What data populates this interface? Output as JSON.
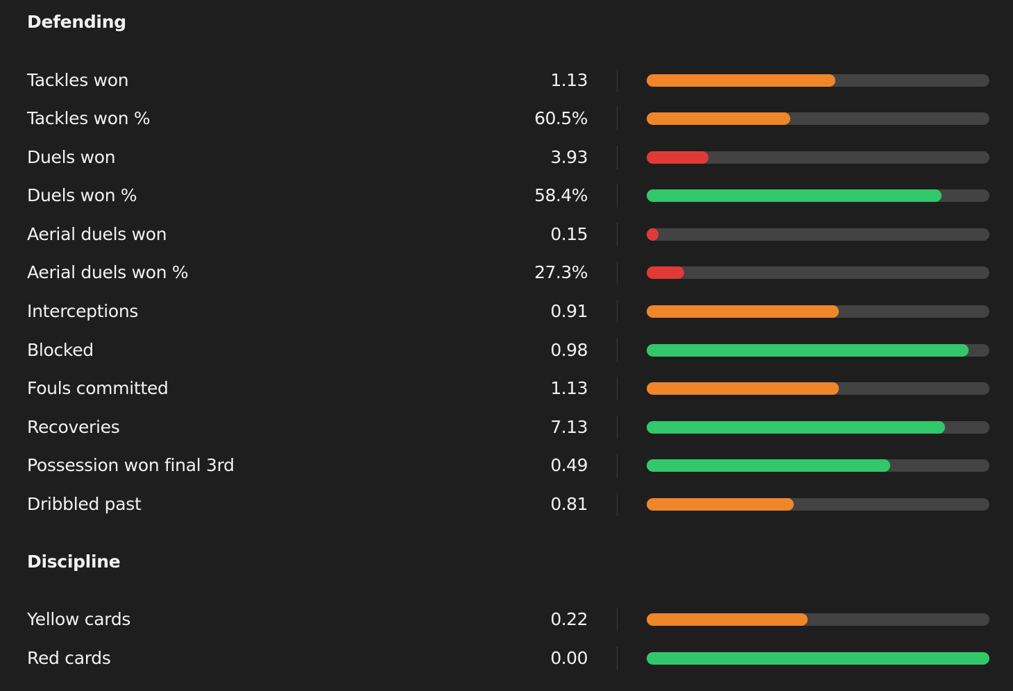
{
  "colors": {
    "background": "#1e1e1e",
    "text": "#f2f2f2",
    "track": "#434343",
    "divider": "#3b3b3b",
    "orange": "#f0862a",
    "red": "#e03a37",
    "green": "#33c76c"
  },
  "sections": [
    {
      "title": "Defending",
      "rows": [
        {
          "label": "Tackles won",
          "value": "1.13",
          "fill": 0.55,
          "color": "orange"
        },
        {
          "label": "Tackles won %",
          "value": "60.5%",
          "fill": 0.42,
          "color": "orange"
        },
        {
          "label": "Duels won",
          "value": "3.93",
          "fill": 0.18,
          "color": "red"
        },
        {
          "label": "Duels won %",
          "value": "58.4%",
          "fill": 0.86,
          "color": "green"
        },
        {
          "label": "Aerial duels won",
          "value": "0.15",
          "fill": 0.035,
          "color": "red"
        },
        {
          "label": "Aerial duels won %",
          "value": "27.3%",
          "fill": 0.11,
          "color": "red"
        },
        {
          "label": "Interceptions",
          "value": "0.91",
          "fill": 0.56,
          "color": "orange"
        },
        {
          "label": "Blocked",
          "value": "0.98",
          "fill": 0.94,
          "color": "green"
        },
        {
          "label": "Fouls committed",
          "value": "1.13",
          "fill": 0.56,
          "color": "orange"
        },
        {
          "label": "Recoveries",
          "value": "7.13",
          "fill": 0.87,
          "color": "green"
        },
        {
          "label": "Possession won final 3rd",
          "value": "0.49",
          "fill": 0.71,
          "color": "green"
        },
        {
          "label": "Dribbled past",
          "value": "0.81",
          "fill": 0.43,
          "color": "orange"
        }
      ]
    },
    {
      "title": "Discipline",
      "rows": [
        {
          "label": "Yellow cards",
          "value": "0.22",
          "fill": 0.47,
          "color": "orange"
        },
        {
          "label": "Red cards",
          "value": "0.00",
          "fill": 1.0,
          "color": "green"
        }
      ]
    }
  ]
}
